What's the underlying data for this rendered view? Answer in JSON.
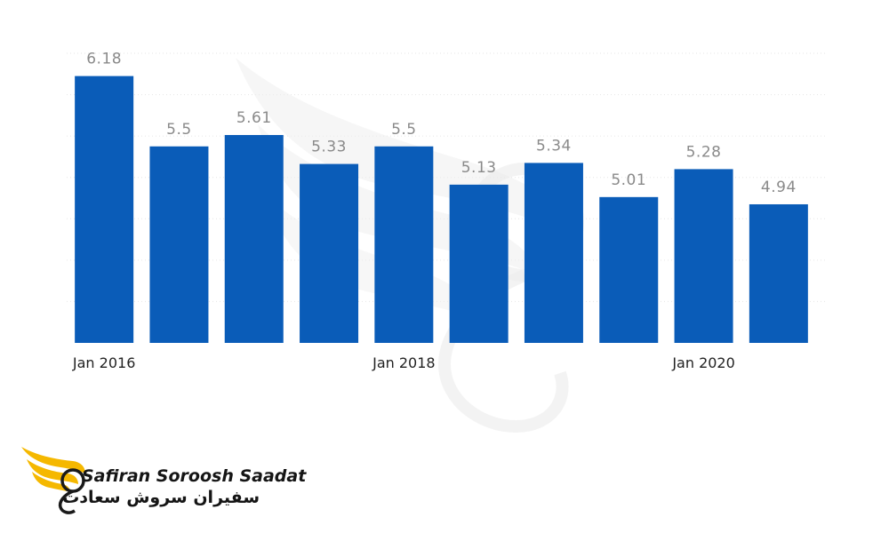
{
  "chart_data": {
    "type": "bar",
    "categories": [
      "Jan 2016",
      "",
      "",
      "",
      "Jan 2018",
      "",
      "",
      "",
      "Jan 2020",
      ""
    ],
    "x_tick_labels": [
      "Jan 2016",
      "Jan 2018",
      "Jan 2020"
    ],
    "values": [
      6.18,
      5.5,
      5.61,
      5.33,
      5.5,
      5.13,
      5.34,
      5.01,
      5.28,
      4.94
    ],
    "value_labels": [
      "6.18",
      "5.5",
      "5.61",
      "5.33",
      "5.5",
      "5.13",
      "5.34",
      "5.01",
      "5.28",
      "4.94"
    ],
    "title": "",
    "xlabel": "",
    "ylabel": "",
    "ylim": [
      3.6,
      6.4
    ],
    "grid": true,
    "bar_color": "#0a5cb8"
  },
  "logo": {
    "text_en": "Safiran Soroosh Saadat",
    "text_fa": "سفیران سروش سعادت",
    "icon": "wing-swirl-logo-icon",
    "accent_color": "#f5b800"
  },
  "watermark": {
    "icon": "wing-swirl-watermark-icon"
  }
}
